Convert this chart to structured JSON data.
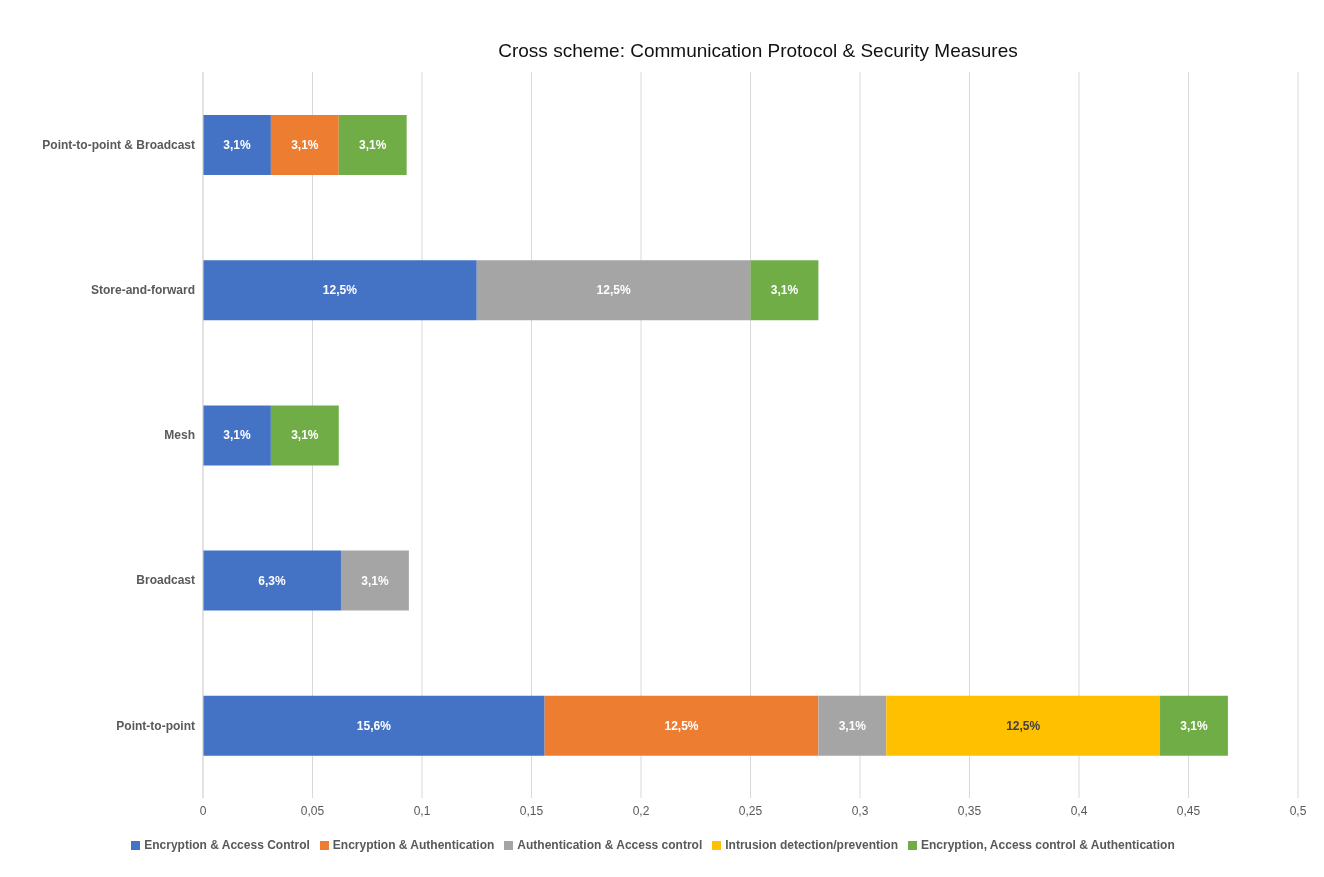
{
  "chart_data": {
    "type": "bar",
    "orientation": "horizontal",
    "stacked": true,
    "title": "Cross scheme: Communication Protocol & Security Measures",
    "categories": [
      "Point-to-point & Broadcast",
      "Store-and-forward",
      "Mesh",
      "Broadcast",
      "Point-to-point"
    ],
    "series": [
      {
        "name": "Encryption & Access Control",
        "color": "#4472c4",
        "values": [
          0.031,
          0.125,
          0.031,
          0.063,
          0.156
        ],
        "value_labels": [
          "3,1%",
          "12,5%",
          "3,1%",
          "6,3%",
          "15,6%"
        ]
      },
      {
        "name": "Encryption & Authentication",
        "color": "#ed7d31",
        "values": [
          0.031,
          null,
          null,
          null,
          0.125
        ],
        "value_labels": [
          "3,1%",
          null,
          null,
          null,
          "12,5%"
        ]
      },
      {
        "name": "Authentication & Access control",
        "color": "#a5a5a5",
        "values": [
          null,
          0.125,
          null,
          0.031,
          0.031
        ],
        "value_labels": [
          null,
          "12,5%",
          null,
          "3,1%",
          "3,1%"
        ]
      },
      {
        "name": "Intrusion detection/prevention",
        "color": "#ffc000",
        "values": [
          null,
          null,
          null,
          null,
          0.125
        ],
        "value_labels": [
          null,
          null,
          null,
          null,
          "12,5%"
        ]
      },
      {
        "name": "Encryption, Access control & Authentication",
        "color": "#70ad47",
        "values": [
          0.031,
          0.031,
          0.031,
          null,
          0.031
        ],
        "value_labels": [
          "3,1%",
          "3,1%",
          "3,1%",
          null,
          "3,1%"
        ]
      }
    ],
    "xlim": [
      0,
      0.5
    ],
    "xticks": [
      0,
      {
        "value": 0.05,
        "label": "0,05"
      },
      {
        "value": 0.1,
        "label": "0,1"
      },
      {
        "value": 0.15,
        "label": "0,15"
      },
      {
        "value": 0.2,
        "label": "0,2"
      },
      {
        "value": 0.25,
        "label": "0,25"
      },
      {
        "value": 0.3,
        "label": "0,3"
      },
      {
        "value": 0.35,
        "label": "0,35"
      },
      {
        "value": 0.4,
        "label": "0,4"
      },
      {
        "value": 0.45,
        "label": "0,45"
      },
      {
        "value": 0.5,
        "label": "0,5"
      }
    ],
    "grid": "x",
    "legend": "bottom"
  }
}
